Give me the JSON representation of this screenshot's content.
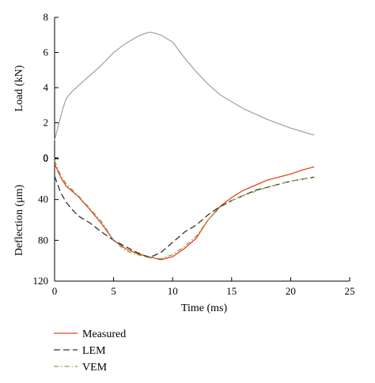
{
  "chart_data": {
    "type": "line",
    "xlabel": "Time (ms)",
    "xlim": [
      0,
      25
    ],
    "xticks": [
      0,
      5,
      10,
      15,
      20,
      25
    ],
    "load_panel": {
      "ylabel": "Load (kN)",
      "ylim": [
        0,
        8
      ],
      "yticks": [
        0,
        2,
        4,
        6,
        8
      ],
      "series": [
        {
          "color": "#a6a6a6",
          "x": [
            0,
            0.3,
            0.7,
            1,
            1.5,
            2,
            3,
            4,
            5,
            6,
            7,
            7.5,
            8,
            8.5,
            9,
            10,
            11,
            12,
            13,
            14,
            16,
            18,
            20,
            22
          ],
          "y": [
            1.0,
            1.8,
            2.8,
            3.4,
            3.8,
            4.1,
            4.7,
            5.3,
            6.0,
            6.5,
            6.9,
            7.05,
            7.15,
            7.1,
            7.0,
            6.6,
            5.7,
            4.9,
            4.2,
            3.6,
            2.8,
            2.2,
            1.7,
            1.3
          ]
        }
      ]
    },
    "deflection_panel": {
      "ylabel": "Deflection (μm)",
      "ylim": [
        0,
        120
      ],
      "yticks": [
        0,
        40,
        80,
        120
      ],
      "y_inverted": true,
      "series": [
        {
          "name": "Measured",
          "color": "#e8431c",
          "dash": "solid",
          "x": [
            0,
            0.5,
            1,
            2,
            3,
            4,
            5,
            6,
            7,
            8,
            9,
            10,
            11,
            12,
            13,
            14,
            15,
            16,
            17,
            18,
            19,
            20,
            21,
            22
          ],
          "y": [
            5,
            18,
            27,
            37,
            50,
            64,
            80,
            88,
            93,
            96,
            99,
            96,
            88,
            78,
            60,
            47,
            38,
            31,
            26,
            21,
            18,
            15,
            11,
            8
          ]
        },
        {
          "name": "LEM",
          "color": "#333333",
          "dash": "8,4",
          "x": [
            0,
            0.5,
            1,
            1.5,
            2,
            3,
            4,
            5,
            6,
            7,
            8,
            9,
            10,
            11,
            12,
            13,
            14,
            15,
            16,
            17,
            18,
            19,
            20,
            21,
            22
          ],
          "y": [
            17,
            33,
            43,
            50,
            56,
            63,
            72,
            80,
            86,
            92,
            97,
            92,
            82,
            72,
            65,
            55,
            47,
            41,
            36,
            31,
            28,
            25,
            22,
            20,
            18
          ]
        },
        {
          "name": "VEM",
          "color": "#7aa84a",
          "dash": "6,3,1.5,3",
          "x": [
            0,
            0.5,
            1,
            2,
            3,
            4,
            5,
            6,
            7,
            8,
            9,
            10,
            11,
            12,
            13,
            14,
            15,
            16,
            17,
            18,
            19,
            20,
            21,
            22
          ],
          "y": [
            2,
            16,
            25,
            36,
            49,
            62,
            80,
            90,
            94,
            97,
            98,
            94,
            86,
            76,
            60,
            48,
            41,
            36,
            32,
            28,
            25,
            22,
            20,
            18
          ]
        }
      ]
    },
    "legend_position": "bottom-left"
  }
}
